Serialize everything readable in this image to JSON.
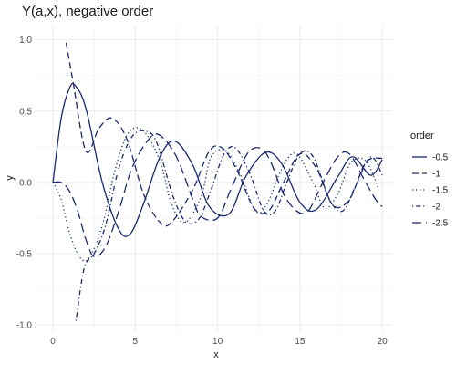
{
  "chart_data": {
    "type": "line",
    "title": "Y(a,x), negative order",
    "xlabel": "x",
    "ylabel": "y",
    "xlim": [
      -1,
      20.6
    ],
    "ylim": [
      -1.05,
      1.1
    ],
    "xticks": [
      0,
      5,
      10,
      15,
      20
    ],
    "xtick_labels": [
      "0",
      "5",
      "10",
      "15",
      "20"
    ],
    "yticks": [
      -1.0,
      -0.5,
      0.0,
      0.5,
      1.0
    ],
    "ytick_labels": [
      "-1.0",
      "-0.5",
      "0.0",
      "0.5",
      "1.0"
    ],
    "grid": true,
    "legend_title": "order",
    "legend_position": "right",
    "line_color": "#1a2a6c",
    "series": [
      {
        "name": "-0.5",
        "dash": "solid",
        "x": [
          0,
          0.5,
          1.0,
          1.35,
          2.0,
          3.0,
          4.0,
          4.7,
          5.5,
          6.5,
          7.4,
          8.5,
          9.5,
          10.7,
          11.7,
          12.9,
          13.9,
          15.0,
          16.0,
          17.3,
          18.2,
          19.3,
          20.0
        ],
        "y": [
          0.0,
          0.45,
          0.66,
          0.68,
          0.52,
          0.0,
          -0.33,
          -0.36,
          -0.15,
          0.18,
          0.29,
          0.12,
          -0.17,
          -0.22,
          0.04,
          0.21,
          0.13,
          -0.14,
          -0.19,
          0.04,
          0.18,
          0.05,
          0.16
        ]
      },
      {
        "name": "-1",
        "dash": "long",
        "x": [
          0.8,
          1.2,
          2.0,
          2.8,
          3.6,
          4.5,
          5.5,
          6.5,
          7.2,
          8.5,
          9.5,
          10.3,
          11.2,
          12.2,
          13.1,
          14.0,
          15.0,
          16.0,
          17.0,
          18.0,
          19.0,
          20.0
        ],
        "y": [
          0.98,
          0.72,
          0.22,
          0.38,
          0.45,
          0.3,
          -0.08,
          -0.28,
          -0.28,
          -0.05,
          0.22,
          0.24,
          0.08,
          -0.18,
          -0.2,
          0.0,
          0.2,
          0.1,
          -0.16,
          -0.12,
          0.14,
          0.17
        ]
      },
      {
        "name": "-1.5",
        "dash": "dotted",
        "x": [
          0,
          0.5,
          1.0,
          1.6,
          2.2,
          3.0,
          3.8,
          4.6,
          5.5,
          6.5,
          7.2,
          8.0,
          9.0,
          9.6,
          10.5,
          11.4,
          12.3,
          13.0,
          14.0,
          14.8,
          15.8,
          16.5,
          17.3,
          18.1,
          19.0,
          19.8
        ],
        "y": [
          0.0,
          -0.12,
          -0.35,
          -0.52,
          -0.53,
          -0.3,
          0.1,
          0.35,
          0.36,
          0.15,
          -0.15,
          -0.28,
          -0.1,
          0.18,
          0.22,
          0.05,
          -0.2,
          -0.15,
          0.12,
          0.2,
          0.0,
          -0.18,
          -0.08,
          0.14,
          0.15,
          -0.05
        ]
      },
      {
        "name": "-2",
        "dash": "dashdot",
        "x": [
          1.4,
          1.9,
          2.5,
          3.2,
          4.0,
          4.8,
          5.6,
          6.3,
          7.3,
          8.1,
          8.9,
          9.6,
          10.4,
          11.1,
          12.0,
          12.8,
          13.5,
          14.2,
          15.0,
          15.8,
          16.8,
          17.6,
          18.4,
          19.3,
          20.0
        ],
        "y": [
          -0.97,
          -0.6,
          -0.5,
          -0.3,
          0.1,
          0.32,
          0.36,
          0.28,
          -0.1,
          -0.28,
          -0.25,
          -0.05,
          0.2,
          0.24,
          0.05,
          -0.2,
          -0.2,
          0.0,
          0.2,
          0.18,
          -0.12,
          -0.2,
          -0.02,
          0.18,
          0.05
        ]
      },
      {
        "name": "-2.5",
        "dash": "longdash",
        "x": [
          0,
          0.5,
          1.0,
          1.5,
          2.0,
          2.5,
          3.2,
          4.0,
          4.8,
          5.8,
          6.5,
          7.5,
          8.5,
          9.0,
          10.0,
          10.8,
          11.8,
          12.6,
          13.2,
          14.0,
          14.8,
          15.5,
          16.4,
          17.3,
          18.0,
          18.9,
          19.6,
          20.0
        ],
        "y": [
          0.0,
          0.0,
          -0.06,
          -0.2,
          -0.4,
          -0.52,
          -0.45,
          -0.2,
          0.1,
          0.3,
          0.33,
          0.18,
          -0.12,
          -0.24,
          -0.25,
          -0.05,
          0.2,
          0.24,
          0.15,
          -0.08,
          -0.2,
          -0.2,
          0.0,
          0.18,
          0.2,
          0.02,
          -0.12,
          -0.17
        ]
      }
    ]
  }
}
